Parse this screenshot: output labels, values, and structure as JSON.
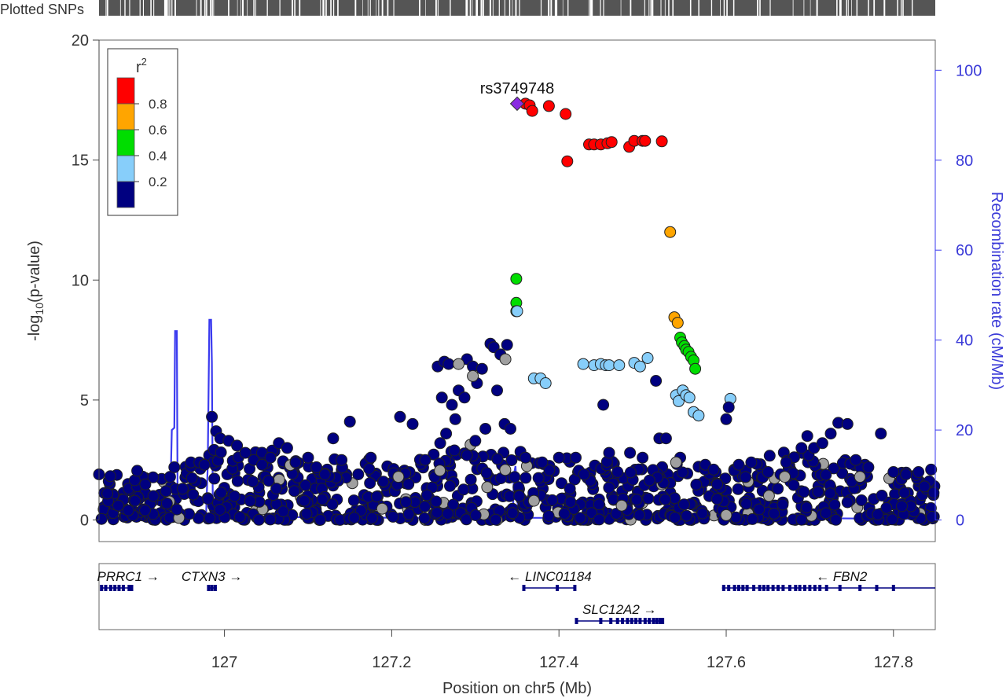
{
  "track_label": "Plotted SNPs",
  "lead_snp": "rs3749748",
  "chart_data": {
    "type": "scatter",
    "title": "",
    "xlabel": "Position on chr5 (Mb)",
    "ylabel_prefix": "-log",
    "ylabel_sub": "10",
    "ylabel_suffix": "(p-value)",
    "y2label": "Recombination rate (cM/Mb)",
    "xlim": [
      126.85,
      127.85
    ],
    "ylim": [
      -0.9,
      20
    ],
    "y2lim": [
      -4.8,
      106.7
    ],
    "x_ticks": [
      127.0,
      127.2,
      127.4,
      127.6,
      127.8
    ],
    "x_tick_labels": [
      "127",
      "127.2",
      "127.4",
      "127.6",
      "127.8"
    ],
    "y_ticks": [
      0,
      5,
      10,
      15,
      20
    ],
    "y_tick_labels": [
      "0",
      "5",
      "10",
      "15",
      "20"
    ],
    "y2_ticks": [
      0,
      20,
      40,
      60,
      80,
      100
    ],
    "y2_tick_labels": [
      "0",
      "20",
      "40",
      "60",
      "80",
      "100"
    ],
    "legend": {
      "title": "r",
      "title_sup": "2",
      "placement": "top-left",
      "bins": [
        {
          "color": "#FF0000",
          "range": [
            0.8,
            1.0
          ]
        },
        {
          "color": "#FFA500",
          "range": [
            0.6,
            0.8
          ]
        },
        {
          "color": "#00DD00",
          "range": [
            0.4,
            0.6
          ]
        },
        {
          "color": "#87CEFA",
          "range": [
            0.2,
            0.4
          ]
        },
        {
          "color": "#000080",
          "range": [
            0.0,
            0.2
          ]
        }
      ],
      "labels": [
        "0.8",
        "0.6",
        "0.4",
        "0.2"
      ]
    },
    "lead_point": {
      "x": 127.35,
      "y": 17.35,
      "color": "#8A2BE2"
    },
    "series": [
      {
        "r2_bin": "0.8-1.0",
        "color": "#FF0000",
        "points": [
          [
            127.36,
            17.35
          ],
          [
            127.365,
            17.28
          ],
          [
            127.368,
            17.05
          ],
          [
            127.388,
            17.25
          ],
          [
            127.408,
            16.92
          ],
          [
            127.41,
            14.95
          ],
          [
            127.436,
            15.65
          ],
          [
            127.442,
            15.65
          ],
          [
            127.45,
            15.65
          ],
          [
            127.458,
            15.7
          ],
          [
            127.463,
            15.75
          ],
          [
            127.484,
            15.55
          ],
          [
            127.49,
            15.8
          ],
          [
            127.5,
            15.8
          ],
          [
            127.503,
            15.8
          ],
          [
            127.523,
            15.78
          ]
        ]
      },
      {
        "r2_bin": "0.6-0.8",
        "color": "#FFA500",
        "points": [
          [
            127.533,
            12.0
          ],
          [
            127.538,
            8.45
          ],
          [
            127.542,
            8.22
          ]
        ]
      },
      {
        "r2_bin": "0.4-0.6",
        "color": "#00DD00",
        "points": [
          [
            127.349,
            10.05
          ],
          [
            127.349,
            9.05
          ],
          [
            127.349,
            8.7
          ],
          [
            127.545,
            7.6
          ],
          [
            127.547,
            7.4
          ],
          [
            127.55,
            7.25
          ],
          [
            127.552,
            7.1
          ],
          [
            127.555,
            7.0
          ],
          [
            127.558,
            6.8
          ],
          [
            127.561,
            6.65
          ],
          [
            127.563,
            6.3
          ]
        ]
      },
      {
        "r2_bin": "0.2-0.4",
        "color": "#87CEFA",
        "points": [
          [
            127.35,
            8.7
          ],
          [
            127.37,
            5.9
          ],
          [
            127.378,
            5.9
          ],
          [
            127.384,
            5.7
          ],
          [
            127.429,
            6.5
          ],
          [
            127.442,
            6.45
          ],
          [
            127.45,
            6.5
          ],
          [
            127.456,
            6.45
          ],
          [
            127.46,
            6.45
          ],
          [
            127.472,
            6.45
          ],
          [
            127.49,
            6.55
          ],
          [
            127.497,
            6.4
          ],
          [
            127.506,
            6.75
          ],
          [
            127.54,
            5.2
          ],
          [
            127.543,
            4.95
          ],
          [
            127.548,
            5.4
          ],
          [
            127.552,
            5.2
          ],
          [
            127.556,
            5.1
          ],
          [
            127.561,
            4.5
          ],
          [
            127.567,
            4.35
          ],
          [
            127.605,
            5.05
          ]
        ]
      },
      {
        "r2_bin": "0.0-0.2",
        "color": "#000080",
        "points": [
          [
            126.85,
            1.9
          ],
          [
            126.86,
            1.1
          ],
          [
            126.873,
            0.6
          ],
          [
            126.885,
            0.4
          ],
          [
            126.893,
            0.8
          ],
          [
            126.905,
            0.4
          ],
          [
            126.915,
            1.0
          ],
          [
            126.93,
            1.2
          ],
          [
            126.935,
            1.8
          ],
          [
            126.94,
            2.2
          ],
          [
            126.95,
            1.3
          ],
          [
            126.96,
            2.4
          ],
          [
            126.97,
            2.4
          ],
          [
            126.976,
            2.3
          ],
          [
            126.985,
            4.3
          ],
          [
            126.99,
            3.7
          ],
          [
            126.995,
            3.4
          ],
          [
            127.005,
            3.3
          ],
          [
            127.015,
            3.1
          ],
          [
            127.025,
            2.8
          ],
          [
            127.035,
            2.5
          ],
          [
            127.045,
            2.3
          ],
          [
            127.055,
            2.6
          ],
          [
            127.065,
            3.2
          ],
          [
            127.075,
            3.0
          ],
          [
            127.085,
            2.4
          ],
          [
            127.1,
            2.6
          ],
          [
            127.11,
            2.2
          ],
          [
            127.12,
            1.9
          ],
          [
            127.13,
            3.4
          ],
          [
            127.14,
            2.5
          ],
          [
            127.15,
            4.1
          ],
          [
            127.16,
            1.9
          ],
          [
            127.175,
            2.6
          ],
          [
            127.19,
            1.6
          ],
          [
            127.21,
            4.3
          ],
          [
            127.225,
            4.0
          ],
          [
            127.24,
            2.5
          ],
          [
            127.255,
            6.4
          ],
          [
            127.26,
            5.1
          ],
          [
            127.263,
            6.6
          ],
          [
            127.268,
            6.5
          ],
          [
            127.272,
            4.8
          ],
          [
            127.276,
            4.2
          ],
          [
            127.28,
            5.4
          ],
          [
            127.287,
            5.1
          ],
          [
            127.29,
            6.7
          ],
          [
            127.297,
            6.4
          ],
          [
            127.302,
            5.7
          ],
          [
            127.308,
            6.3
          ],
          [
            127.312,
            3.8
          ],
          [
            127.318,
            7.35
          ],
          [
            127.322,
            7.2
          ],
          [
            127.326,
            5.4
          ],
          [
            127.33,
            6.9
          ],
          [
            127.335,
            4.0
          ],
          [
            127.338,
            7.3
          ],
          [
            127.342,
            3.8
          ],
          [
            127.3,
            3.3
          ],
          [
            127.29,
            2.7
          ],
          [
            127.275,
            2.9
          ],
          [
            127.265,
            3.6
          ],
          [
            127.258,
            3.2
          ],
          [
            127.36,
            2.6
          ],
          [
            127.38,
            2.4
          ],
          [
            127.4,
            2.6
          ],
          [
            127.42,
            2.6
          ],
          [
            127.43,
            1.9
          ],
          [
            127.453,
            4.8
          ],
          [
            127.46,
            2.8
          ],
          [
            127.47,
            2.0
          ],
          [
            127.485,
            2.8
          ],
          [
            127.5,
            2.6
          ],
          [
            127.516,
            5.8
          ],
          [
            127.52,
            3.4
          ],
          [
            127.528,
            3.4
          ],
          [
            127.545,
            2.6
          ],
          [
            127.575,
            2.3
          ],
          [
            127.585,
            2.1
          ],
          [
            127.6,
            4.2
          ],
          [
            127.603,
            4.7
          ],
          [
            127.615,
            2.3
          ],
          [
            127.63,
            2.4
          ],
          [
            127.65,
            2.0
          ],
          [
            127.665,
            1.9
          ],
          [
            127.68,
            1.95
          ],
          [
            127.69,
            3.0
          ],
          [
            127.697,
            3.5
          ],
          [
            127.705,
            3.0
          ],
          [
            127.715,
            3.2
          ],
          [
            127.725,
            3.6
          ],
          [
            127.734,
            4.05
          ],
          [
            127.745,
            4.0
          ],
          [
            127.755,
            2.5
          ],
          [
            127.77,
            2.2
          ],
          [
            127.785,
            3.6
          ],
          [
            127.8,
            2.0
          ],
          [
            127.815,
            1.9
          ],
          [
            127.83,
            2.0
          ],
          [
            127.845,
            2.1
          ]
        ]
      },
      {
        "r2_bin": "no r2",
        "color": "#A0A0A0",
        "points": [
          [
            127.208,
            1.8
          ],
          [
            127.28,
            6.5
          ],
          [
            127.297,
            6.0
          ],
          [
            127.336,
            6.7
          ],
          [
            127.37,
            0.8
          ],
          [
            127.475,
            0.6
          ],
          [
            127.54,
            2.4
          ],
          [
            127.6,
            0.2
          ],
          [
            127.67,
            1.8
          ],
          [
            127.76,
            1.8
          ]
        ]
      }
    ],
    "background_trend": {
      "note": "dense band of SNPs with r2 < 0.2 near -log10 p of 0 to 2",
      "band_max": [
        [
          126.85,
          1.9
        ],
        [
          126.95,
          2.3
        ],
        [
          127.0,
          3.3
        ],
        [
          127.1,
          2.6
        ],
        [
          127.2,
          2.6
        ],
        [
          127.3,
          3.2
        ],
        [
          127.4,
          2.6
        ],
        [
          127.5,
          2.4
        ],
        [
          127.6,
          2.4
        ],
        [
          127.7,
          3.0
        ],
        [
          127.8,
          2.0
        ],
        [
          127.85,
          2.1
        ]
      ]
    },
    "recombination_rate": [
      [
        126.85,
        0.3
      ],
      [
        126.93,
        0.3
      ],
      [
        126.935,
        2.5
      ],
      [
        126.937,
        20.0
      ],
      [
        126.94,
        20.5
      ],
      [
        126.941,
        42.0
      ],
      [
        126.943,
        42.0
      ],
      [
        126.944,
        3.0
      ],
      [
        126.95,
        1.2
      ],
      [
        126.978,
        1.0
      ],
      [
        126.98,
        12.0
      ],
      [
        126.982,
        44.5
      ],
      [
        126.984,
        44.5
      ],
      [
        126.985,
        35.0
      ],
      [
        126.986,
        5.0
      ],
      [
        126.99,
        1.0
      ],
      [
        127.1,
        0.6
      ],
      [
        127.3,
        0.4
      ],
      [
        127.345,
        0.4
      ],
      [
        127.346,
        10.0
      ],
      [
        127.348,
        12.0
      ],
      [
        127.35,
        5.0
      ],
      [
        127.352,
        0.5
      ],
      [
        127.5,
        0.4
      ],
      [
        127.55,
        0.3
      ],
      [
        127.7,
        0.4
      ],
      [
        127.85,
        0.2
      ]
    ]
  },
  "gene_track": {
    "genes": [
      {
        "name": "PRRC1",
        "arrow": "→",
        "label_side": "before",
        "start": 126.853,
        "end": 126.89,
        "row": 0,
        "exons": [
          126.853,
          126.858,
          126.864,
          126.869,
          126.874,
          126.879,
          126.886,
          126.889
        ]
      },
      {
        "name": "CTXN3",
        "arrow": "→",
        "label_side": "before",
        "start": 126.981,
        "end": 126.991,
        "row": 0,
        "exons": [
          126.981,
          126.985,
          126.989
        ]
      },
      {
        "name": "LINC01184",
        "arrow": "←",
        "label_side": "after",
        "start": 127.358,
        "end": 127.42,
        "row": 0,
        "exons": [
          127.358,
          127.398,
          127.419
        ]
      },
      {
        "name": "FBN2",
        "arrow": "←",
        "label_side": "after",
        "start": 127.595,
        "end": 127.85,
        "row": 0,
        "exons": [
          127.597,
          127.603,
          127.61,
          127.615,
          127.62,
          127.625,
          127.633,
          127.64,
          127.645,
          127.65,
          127.656,
          127.662,
          127.668,
          127.676,
          127.683,
          127.688,
          127.694,
          127.7,
          127.706,
          127.712,
          127.72,
          127.736,
          127.76,
          127.78,
          127.8
        ]
      },
      {
        "name": "SLC12A2",
        "arrow": "→",
        "label_side": "before",
        "start": 127.42,
        "end": 127.525,
        "row": 1,
        "exons": [
          127.421,
          127.45,
          127.462,
          127.47,
          127.476,
          127.482,
          127.487,
          127.492,
          127.497,
          127.503,
          127.508,
          127.513,
          127.517,
          127.521,
          127.524
        ]
      }
    ]
  }
}
